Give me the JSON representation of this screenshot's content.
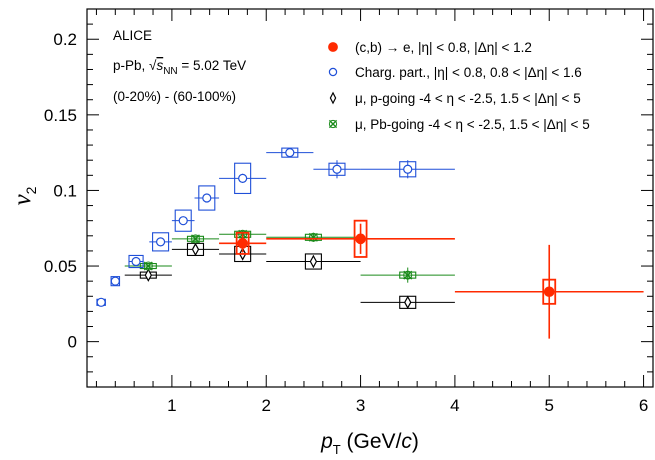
{
  "chart_data": {
    "type": "scatter",
    "xlabel": "p_T (GeV/c)",
    "ylabel": "v_2",
    "xlim": [
      0.1,
      6.1
    ],
    "ylim": [
      -0.03,
      0.22
    ],
    "x_ticks": [
      1,
      2,
      3,
      4,
      5,
      6
    ],
    "y_ticks": [
      0,
      0.05,
      0.1,
      0.15,
      0.2
    ],
    "x_tick_labels": [
      "1",
      "2",
      "3",
      "4",
      "5",
      "6"
    ],
    "y_tick_labels": [
      "0",
      "0.05",
      "0.1",
      "0.15",
      "0.2"
    ],
    "grid": false,
    "legend_position": "top-right",
    "info_text": [
      "ALICE",
      "p-Pb, √s_NN = 5.02 TeV",
      "(0-20%) - (60-100%)"
    ],
    "series": [
      {
        "name": "(c,b) → e, |η| < 0.8, |Δη| < 1.2",
        "marker": "filled-circle",
        "color": "#ff2a00",
        "points": [
          {
            "x": 1.75,
            "y": 0.065,
            "xerr": 0.25,
            "yerr": 0.006,
            "syst": 0.007
          },
          {
            "x": 3.0,
            "y": 0.068,
            "xerr": 1.0,
            "yerr": 0.01,
            "syst": 0.012
          },
          {
            "x": 5.0,
            "y": 0.033,
            "xerr": 1.0,
            "yerr": 0.031,
            "syst": 0.008
          }
        ]
      },
      {
        "name": "Charg. part., |η| < 0.8, 0.8 < |Δη| < 1.6",
        "marker": "open-circle",
        "color": "#1f4fd8",
        "points": [
          {
            "x": 0.25,
            "y": 0.026,
            "xerr": 0.05,
            "yerr": 0.001,
            "syst": 0.002
          },
          {
            "x": 0.4,
            "y": 0.04,
            "xerr": 0.05,
            "yerr": 0.001,
            "syst": 0.003
          },
          {
            "x": 0.62,
            "y": 0.053,
            "xerr": 0.08,
            "yerr": 0.001,
            "syst": 0.004
          },
          {
            "x": 0.88,
            "y": 0.066,
            "xerr": 0.12,
            "yerr": 0.001,
            "syst": 0.006
          },
          {
            "x": 1.12,
            "y": 0.08,
            "xerr": 0.12,
            "yerr": 0.001,
            "syst": 0.007
          },
          {
            "x": 1.37,
            "y": 0.095,
            "xerr": 0.13,
            "yerr": 0.002,
            "syst": 0.008
          },
          {
            "x": 1.75,
            "y": 0.108,
            "xerr": 0.25,
            "yerr": 0.003,
            "syst": 0.01
          },
          {
            "x": 2.25,
            "y": 0.125,
            "xerr": 0.25,
            "yerr": 0.003,
            "syst": 0.003
          },
          {
            "x": 2.75,
            "y": 0.114,
            "xerr": 0.25,
            "yerr": 0.006,
            "syst": 0.004
          },
          {
            "x": 3.5,
            "y": 0.114,
            "xerr": 0.5,
            "yerr": 0.006,
            "syst": 0.005
          }
        ]
      },
      {
        "name": "μ, p-going -4 < η < -2.5, 1.5 < |Δη| < 5",
        "marker": "open-diamond",
        "color": "#000000",
        "points": [
          {
            "x": 0.75,
            "y": 0.044,
            "xerr": 0.25,
            "yerr": 0.001,
            "syst": 0.002
          },
          {
            "x": 1.25,
            "y": 0.061,
            "xerr": 0.25,
            "yerr": 0.002,
            "syst": 0.004
          },
          {
            "x": 1.75,
            "y": 0.058,
            "xerr": 0.25,
            "yerr": 0.003,
            "syst": 0.005
          },
          {
            "x": 2.5,
            "y": 0.053,
            "xerr": 0.5,
            "yerr": 0.004,
            "syst": 0.005
          },
          {
            "x": 3.5,
            "y": 0.026,
            "xerr": 0.5,
            "yerr": 0.004,
            "syst": 0.004
          }
        ]
      },
      {
        "name": "μ, Pb-going -4 < η < -2.5, 1.5 < |Δη| < 5",
        "marker": "open-cross",
        "color": "#1a8a1a",
        "points": [
          {
            "x": 0.75,
            "y": 0.05,
            "xerr": 0.25,
            "yerr": 0.001,
            "syst": 0.001
          },
          {
            "x": 1.25,
            "y": 0.068,
            "xerr": 0.25,
            "yerr": 0.001,
            "syst": 0.001
          },
          {
            "x": 1.75,
            "y": 0.071,
            "xerr": 0.25,
            "yerr": 0.002,
            "syst": 0.002
          },
          {
            "x": 2.5,
            "y": 0.069,
            "xerr": 0.5,
            "yerr": 0.003,
            "syst": 0.002
          },
          {
            "x": 3.5,
            "y": 0.044,
            "xerr": 0.5,
            "yerr": 0.005,
            "syst": 0.002
          }
        ]
      }
    ]
  }
}
